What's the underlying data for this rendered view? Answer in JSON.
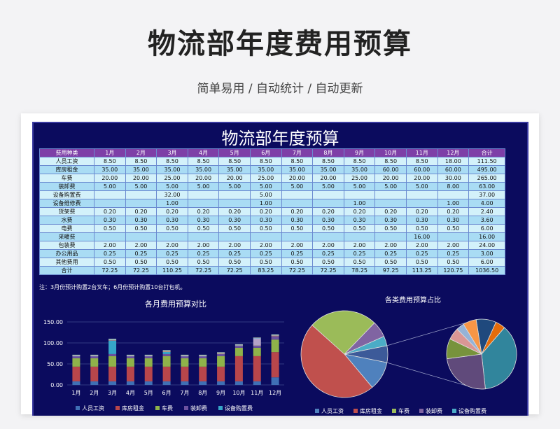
{
  "header": {
    "title": "物流部年度费用预算",
    "subtitle": "简单易用  /  自动统计  /  自动更新"
  },
  "sheet": {
    "title": "物流部年度预算",
    "columns": [
      "费用种类",
      "1月",
      "2月",
      "3月",
      "4月",
      "5月",
      "6月",
      "7月",
      "8月",
      "9月",
      "10月",
      "11月",
      "12月",
      "合计"
    ],
    "rows": [
      [
        "人员工资",
        "8.50",
        "8.50",
        "8.50",
        "8.50",
        "8.50",
        "8.50",
        "8.50",
        "8.50",
        "8.50",
        "8.50",
        "8.50",
        "18.00",
        "111.50"
      ],
      [
        "库房租金",
        "35.00",
        "35.00",
        "35.00",
        "35.00",
        "35.00",
        "35.00",
        "35.00",
        "35.00",
        "35.00",
        "60.00",
        "60.00",
        "60.00",
        "495.00"
      ],
      [
        "车费",
        "20.00",
        "20.00",
        "25.00",
        "20.00",
        "20.00",
        "25.00",
        "20.00",
        "20.00",
        "25.00",
        "20.00",
        "20.00",
        "30.00",
        "265.00"
      ],
      [
        "装卸费",
        "5.00",
        "5.00",
        "5.00",
        "5.00",
        "5.00",
        "5.00",
        "5.00",
        "5.00",
        "5.00",
        "5.00",
        "5.00",
        "8.00",
        "63.00"
      ],
      [
        "设备购置费",
        "",
        "",
        "32.00",
        "",
        "",
        "5.00",
        "",
        "",
        "",
        "",
        "",
        "",
        "37.00"
      ],
      [
        "设备维修费",
        "",
        "",
        "1.00",
        "",
        "",
        "1.00",
        "",
        "",
        "1.00",
        "",
        "",
        "1.00",
        "4.00"
      ],
      [
        "货架费",
        "0.20",
        "0.20",
        "0.20",
        "0.20",
        "0.20",
        "0.20",
        "0.20",
        "0.20",
        "0.20",
        "0.20",
        "0.20",
        "0.20",
        "2.40"
      ],
      [
        "水费",
        "0.30",
        "0.30",
        "0.30",
        "0.30",
        "0.30",
        "0.30",
        "0.30",
        "0.30",
        "0.30",
        "0.30",
        "0.30",
        "0.30",
        "3.60"
      ],
      [
        "电费",
        "0.50",
        "0.50",
        "0.50",
        "0.50",
        "0.50",
        "0.50",
        "0.50",
        "0.50",
        "0.50",
        "0.50",
        "0.50",
        "0.50",
        "6.00"
      ],
      [
        "采暖费",
        "",
        "",
        "",
        "",
        "",
        "",
        "",
        "",
        "",
        "",
        "16.00",
        "",
        "16.00"
      ],
      [
        "包装费",
        "2.00",
        "2.00",
        "2.00",
        "2.00",
        "2.00",
        "2.00",
        "2.00",
        "2.00",
        "2.00",
        "2.00",
        "2.00",
        "2.00",
        "24.00"
      ],
      [
        "办公用品",
        "0.25",
        "0.25",
        "0.25",
        "0.25",
        "0.25",
        "0.25",
        "0.25",
        "0.25",
        "0.25",
        "0.25",
        "0.25",
        "0.25",
        "3.00"
      ],
      [
        "其他费用",
        "0.50",
        "0.50",
        "0.50",
        "0.50",
        "0.50",
        "0.50",
        "0.50",
        "0.50",
        "0.50",
        "0.50",
        "0.50",
        "0.50",
        "6.00"
      ],
      [
        "合计",
        "72.25",
        "72.25",
        "110.25",
        "72.25",
        "72.25",
        "83.25",
        "72.25",
        "72.25",
        "78.25",
        "97.25",
        "113.25",
        "120.75",
        "1036.50"
      ]
    ],
    "note": "注：3月份预计购置2台叉车；6月份预计购置10台打包机。"
  },
  "chart_data": [
    {
      "type": "bar",
      "stacked": true,
      "title": "各月费用预算对比",
      "categories": [
        "1月",
        "2月",
        "3月",
        "4月",
        "5月",
        "6月",
        "7月",
        "8月",
        "9月",
        "10月",
        "11月",
        "12月"
      ],
      "ylim": [
        0,
        150
      ],
      "yticks": [
        "0.00",
        "50.00",
        "100.00",
        "150.00"
      ],
      "grid": true,
      "legend": "bottom",
      "legend_visible": [
        "人员工资",
        "库房租金",
        "车费",
        "装卸费",
        "设备购置费"
      ],
      "series": [
        {
          "name": "人员工资",
          "color": "#3f6fb5",
          "values": [
            8.5,
            8.5,
            8.5,
            8.5,
            8.5,
            8.5,
            8.5,
            8.5,
            8.5,
            8.5,
            8.5,
            18
          ]
        },
        {
          "name": "库房租金",
          "color": "#b8464b",
          "values": [
            35,
            35,
            35,
            35,
            35,
            35,
            35,
            35,
            35,
            60,
            60,
            60
          ]
        },
        {
          "name": "车费",
          "color": "#8fb24a",
          "values": [
            20,
            20,
            25,
            20,
            20,
            25,
            20,
            20,
            25,
            20,
            20,
            30
          ]
        },
        {
          "name": "装卸费",
          "color": "#6c51a0",
          "values": [
            5,
            5,
            5,
            5,
            5,
            5,
            5,
            5,
            5,
            5,
            5,
            8
          ]
        },
        {
          "name": "设备购置费",
          "color": "#36a6c8",
          "values": [
            0,
            0,
            32,
            0,
            0,
            5,
            0,
            0,
            0,
            0,
            0,
            0
          ]
        },
        {
          "name": "设备维修费",
          "color": "#e28a3c",
          "values": [
            0,
            0,
            1,
            0,
            0,
            1,
            0,
            0,
            1,
            0,
            0,
            1
          ]
        },
        {
          "name": "货架费",
          "color": "#8ba6d8",
          "values": [
            0.2,
            0.2,
            0.2,
            0.2,
            0.2,
            0.2,
            0.2,
            0.2,
            0.2,
            0.2,
            0.2,
            0.2
          ]
        },
        {
          "name": "水费",
          "color": "#d99694",
          "values": [
            0.3,
            0.3,
            0.3,
            0.3,
            0.3,
            0.3,
            0.3,
            0.3,
            0.3,
            0.3,
            0.3,
            0.3
          ]
        },
        {
          "name": "电费",
          "color": "#c3d69b",
          "values": [
            0.5,
            0.5,
            0.5,
            0.5,
            0.5,
            0.5,
            0.5,
            0.5,
            0.5,
            0.5,
            0.5,
            0.5
          ]
        },
        {
          "name": "采暖费",
          "color": "#b3a2c7",
          "values": [
            0,
            0,
            0,
            0,
            0,
            0,
            0,
            0,
            0,
            0,
            16,
            0
          ]
        },
        {
          "name": "包装费",
          "color": "#93cddd",
          "values": [
            2,
            2,
            2,
            2,
            2,
            2,
            2,
            2,
            2,
            2,
            2,
            2
          ]
        },
        {
          "name": "办公用品",
          "color": "#fac090",
          "values": [
            0.25,
            0.25,
            0.25,
            0.25,
            0.25,
            0.25,
            0.25,
            0.25,
            0.25,
            0.25,
            0.25,
            0.25
          ]
        },
        {
          "name": "其他费用",
          "color": "#2c4d75",
          "values": [
            0.5,
            0.5,
            0.5,
            0.5,
            0.5,
            0.5,
            0.5,
            0.5,
            0.5,
            0.5,
            0.5,
            0.5
          ]
        }
      ]
    },
    {
      "type": "pie",
      "variant": "pie-of-pie",
      "title": "各类费用预算占比",
      "legend": "bottom",
      "legend_visible": [
        "人员工资",
        "库房租金",
        "车费",
        "装卸费",
        "设备购置费"
      ],
      "slices": [
        {
          "name": "人员工资",
          "value": 111.5,
          "color": "#4f81bd"
        },
        {
          "name": "库房租金",
          "value": 495,
          "color": "#c0504d"
        },
        {
          "name": "车费",
          "value": 265,
          "color": "#9bbb59"
        },
        {
          "name": "装卸费",
          "value": 63,
          "color": "#8064a2"
        },
        {
          "name": "设备购置费",
          "value": 37,
          "color": "#4bacc6"
        },
        {
          "name": "设备维修费",
          "value": 4,
          "color": "#f79646"
        },
        {
          "name": "货架费",
          "value": 2.4,
          "color": "#95b3d7"
        },
        {
          "name": "水费",
          "value": 3.6,
          "color": "#da9694"
        },
        {
          "name": "电费",
          "value": 6,
          "color": "#77933c"
        },
        {
          "name": "采暖费",
          "value": 16,
          "color": "#604a7b"
        },
        {
          "name": "包装费",
          "value": 24,
          "color": "#31859c"
        },
        {
          "name": "办公用品",
          "value": 3,
          "color": "#e46c0a"
        },
        {
          "name": "其他费用",
          "value": 6,
          "color": "#1f497d"
        }
      ]
    }
  ]
}
